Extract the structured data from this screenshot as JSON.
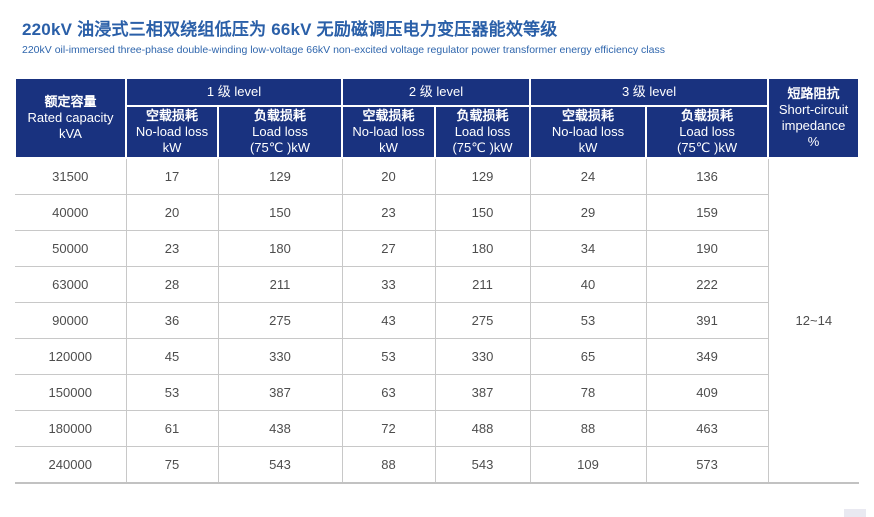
{
  "page": {
    "title": "220kV 油浸式三相双绕组低压为 66kV 无励磁调压电力变压器能效等级",
    "subtitle": "220kV oil-immersed three-phase double-winding low-voltage 66kV non-excited voltage regulator power transformer energy efficiency class"
  },
  "colors": {
    "header_bg": "#19327f",
    "header_text": "#ffffff",
    "title_text": "#2a5fa8",
    "subtitle_text": "#2f66ad",
    "body_text": "#4d4d4d",
    "grid_line": "#c8c8c8"
  },
  "table": {
    "capacity_header": {
      "zh": "额定容量",
      "en": "Rated capacity",
      "unit": "kVA"
    },
    "groups": [
      {
        "label": "1 级 level"
      },
      {
        "label": "2 级 level"
      },
      {
        "label": "3 级 level"
      }
    ],
    "subheaders": {
      "no_load": {
        "zh": "空载损耗",
        "en": "No-load loss",
        "unit": "kW"
      },
      "load": {
        "zh": "负载损耗",
        "en": "Load loss",
        "unit": "(75℃ )kW"
      }
    },
    "impedance_header": {
      "zh": "短路阻抗",
      "en_line1": "Short-circuit",
      "en_line2": "impedance",
      "unit": "%"
    },
    "impedance_value": "12~14",
    "rows": [
      {
        "capacity": "31500",
        "values": [
          "17",
          "129",
          "20",
          "129",
          "24",
          "136"
        ]
      },
      {
        "capacity": "40000",
        "values": [
          "20",
          "150",
          "23",
          "150",
          "29",
          "159"
        ]
      },
      {
        "capacity": "50000",
        "values": [
          "23",
          "180",
          "27",
          "180",
          "34",
          "190"
        ]
      },
      {
        "capacity": "63000",
        "values": [
          "28",
          "211",
          "33",
          "211",
          "40",
          "222"
        ]
      },
      {
        "capacity": "90000",
        "values": [
          "36",
          "275",
          "43",
          "275",
          "53",
          "391"
        ]
      },
      {
        "capacity": "120000",
        "values": [
          "45",
          "330",
          "53",
          "330",
          "65",
          "349"
        ]
      },
      {
        "capacity": "150000",
        "values": [
          "53",
          "387",
          "63",
          "387",
          "78",
          "409"
        ]
      },
      {
        "capacity": "180000",
        "values": [
          "61",
          "438",
          "72",
          "488",
          "88",
          "463"
        ]
      },
      {
        "capacity": "240000",
        "values": [
          "75",
          "543",
          "88",
          "543",
          "109",
          "573"
        ]
      }
    ]
  }
}
